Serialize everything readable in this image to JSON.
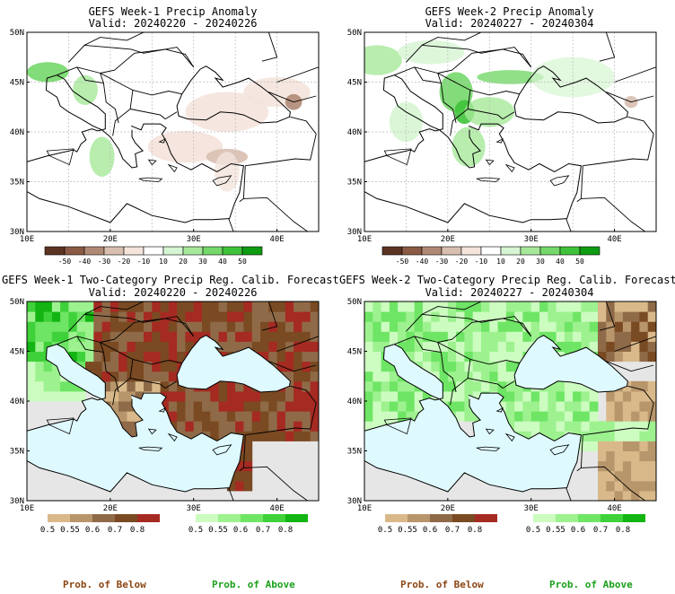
{
  "panels": [
    {
      "title": "GEFS Week-1 Precip Anomaly",
      "valid": "Valid: 20240220 - 20240226",
      "lat_ticks": [
        "50N",
        "45N",
        "40N",
        "35N",
        "30N"
      ],
      "lon_ticks": [
        "10E",
        "20E",
        "30E",
        "40E"
      ],
      "colorbar": {
        "colors": [
          "#5b3322",
          "#8b5a45",
          "#b08975",
          "#d8bfb0",
          "#f4e4dc",
          "#ffffff",
          "#d6f5d2",
          "#a6e89a",
          "#74d86a",
          "#3fc23a",
          "#0f9b12"
        ],
        "labels": [
          "-50",
          "-40",
          "-30",
          "-20",
          "-10",
          "10",
          "20",
          "30",
          "40",
          "50"
        ]
      }
    },
    {
      "title": "GEFS Week-2 Precip Anomaly",
      "valid": "Valid: 20240227 - 20240304",
      "lat_ticks": [
        "50N",
        "45N",
        "40N",
        "35N",
        "30N"
      ],
      "lon_ticks": [
        "10E",
        "20E",
        "30E",
        "40E"
      ],
      "colorbar": {
        "colors": [
          "#5b3322",
          "#8b5a45",
          "#b08975",
          "#d8bfb0",
          "#f4e4dc",
          "#ffffff",
          "#d6f5d2",
          "#a6e89a",
          "#74d86a",
          "#3fc23a",
          "#0f9b12"
        ],
        "labels": [
          "-50",
          "-40",
          "-30",
          "-20",
          "-10",
          "10",
          "20",
          "30",
          "40",
          "50"
        ]
      }
    },
    {
      "title": "GEFS Week-1 Two-Category Precip Reg. Calib. Forecast",
      "valid": "Valid: 20240220 - 20240226",
      "lat_ticks": [
        "50N",
        "45N",
        "40N",
        "35N",
        "30N"
      ],
      "lon_ticks": [
        "10E",
        "20E",
        "30E",
        "40E"
      ],
      "below": {
        "colors": [
          "#d9b98a",
          "#b8966b",
          "#8f6a48",
          "#7a4a22",
          "#a52a22"
        ],
        "labels": [
          "0.5",
          "0.55",
          "0.6",
          "0.7",
          "0.8"
        ]
      },
      "above": {
        "colors": [
          "#ccfcc0",
          "#9df28f",
          "#6fe565",
          "#3fd13a",
          "#12b512"
        ],
        "labels": [
          "0.5",
          "0.55",
          "0.6",
          "0.7",
          "0.8"
        ]
      }
    },
    {
      "title": "GEFS Week-2 Two-Category Precip Reg. Calib. Forecast",
      "valid": "Valid: 20240227 - 20240304",
      "lat_ticks": [
        "50N",
        "45N",
        "40N",
        "35N",
        "30N"
      ],
      "lon_ticks": [
        "10E",
        "20E",
        "30E",
        "40E"
      ],
      "below": {
        "colors": [
          "#d9b98a",
          "#b8966b",
          "#8f6a48",
          "#7a4a22",
          "#a52a22"
        ],
        "labels": [
          "0.5",
          "0.55",
          "0.6",
          "0.7",
          "0.8"
        ]
      },
      "above": {
        "colors": [
          "#ccfcc0",
          "#9df28f",
          "#6fe565",
          "#3fd13a",
          "#12b512"
        ],
        "labels": [
          "0.5",
          "0.55",
          "0.6",
          "0.7",
          "0.8"
        ]
      }
    }
  ],
  "footer": {
    "left_below": "Prob. of Below",
    "left_above": "Prob. of Above",
    "right_below": "Prob. of Below",
    "right_above": "Prob. of Above",
    "below_color": "#8b4513",
    "above_color": "#1aa01a"
  },
  "chart_data": [
    {
      "type": "heatmap",
      "title": "GEFS Week-1 Precip Anomaly",
      "subtitle": "Valid: 20240220 - 20240226",
      "xlim": [
        10,
        45
      ],
      "ylim": [
        30,
        50
      ],
      "xlabel": "",
      "ylabel": "",
      "grid": true
    },
    {
      "type": "heatmap",
      "title": "GEFS Week-2 Precip Anomaly",
      "subtitle": "Valid: 20240227 - 20240304",
      "xlim": [
        10,
        45
      ],
      "ylim": [
        30,
        50
      ],
      "xlabel": "",
      "ylabel": "",
      "grid": true
    },
    {
      "type": "heatmap",
      "title": "GEFS Week-1 Two-Category Precip Reg. Calib. Forecast",
      "subtitle": "Valid: 20240220 - 20240226",
      "xlim": [
        10,
        45
      ],
      "ylim": [
        30,
        50
      ],
      "xlabel": "",
      "ylabel": "",
      "grid": false
    },
    {
      "type": "heatmap",
      "title": "GEFS Week-2 Two-Category Precip Reg. Calib. Forecast",
      "subtitle": "Valid: 20240227 - 20240304",
      "xlim": [
        10,
        45
      ],
      "ylim": [
        30,
        50
      ],
      "xlabel": "",
      "ylabel": "",
      "grid": false
    }
  ]
}
